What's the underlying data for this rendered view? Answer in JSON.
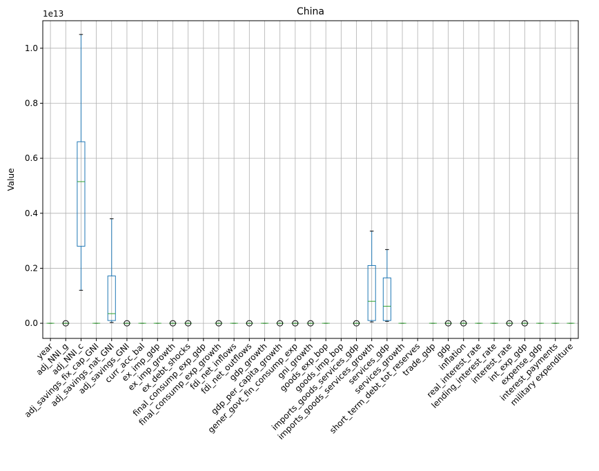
{
  "chart_data": {
    "type": "box",
    "title": "China",
    "y_label": "Value",
    "y_offset_label": "1e13",
    "categories": [
      "year",
      "adj_NNI_g",
      "adj_NNI_c",
      "adj_savings_fix_cap_GNI",
      "adj_savings_nat_GNI",
      "adj_savings_GNI",
      "curr_acc_bal",
      "ex_imp_gdp",
      "ex_imp_growth",
      "ex_debt_shocks",
      "final_consump_exp_gdp",
      "final_consump_exp_growth",
      "fdi_net_inflows",
      "fdi_net_outflows",
      "gdp_growth",
      "gdp_per_capita_growth",
      "gener_govt_fin_consump_exp",
      "gni_growth",
      "goods_exp_bop",
      "goods_imp_bop",
      "imports_goods_services_gdp",
      "imports_goods_services_growth",
      "services_gdp",
      "services_growth",
      "short_term_debt_tot_reserves",
      "trade_gdp",
      "gdp",
      "inflation",
      "real_interest_rate",
      "lending_interest_rate",
      "interest_rate",
      "int_exp_gdp",
      "expense_gdp",
      "interest_payments",
      "military expenditure"
    ],
    "boxes": [
      {
        "whislo": 0,
        "q1": 0,
        "med": 0,
        "q3": 0,
        "whishi": 0,
        "fliers": []
      },
      {
        "whislo": 0,
        "q1": 0,
        "med": 0,
        "q3": 0,
        "whishi": 0,
        "fliers": [
          0
        ]
      },
      {
        "whislo": 0.12,
        "q1": 0.28,
        "med": 0.515,
        "q3": 0.66,
        "whishi": 1.05,
        "fliers": []
      },
      {
        "whislo": 0,
        "q1": 0,
        "med": 0,
        "q3": 0,
        "whishi": 0,
        "fliers": []
      },
      {
        "whislo": 0.003,
        "q1": 0.01,
        "med": 0.035,
        "q3": 0.172,
        "whishi": 0.38,
        "fliers": []
      },
      {
        "whislo": 0,
        "q1": 0,
        "med": 0,
        "q3": 0,
        "whishi": 0,
        "fliers": [
          0
        ]
      },
      {
        "whislo": 0,
        "q1": 0,
        "med": 0,
        "q3": 0,
        "whishi": 0,
        "fliers": []
      },
      {
        "whislo": 0,
        "q1": 0,
        "med": 0,
        "q3": 0,
        "whishi": 0,
        "fliers": []
      },
      {
        "whislo": 0,
        "q1": 0,
        "med": 0,
        "q3": 0,
        "whishi": 0,
        "fliers": [
          0
        ]
      },
      {
        "whislo": 0,
        "q1": 0,
        "med": 0,
        "q3": 0,
        "whishi": 0,
        "fliers": [
          0
        ]
      },
      null,
      {
        "whislo": 0,
        "q1": 0,
        "med": 0,
        "q3": 0,
        "whishi": 0,
        "fliers": [
          0
        ]
      },
      {
        "whislo": 0,
        "q1": 0,
        "med": 0,
        "q3": 0,
        "whishi": 0,
        "fliers": []
      },
      {
        "whislo": 0,
        "q1": 0,
        "med": 0,
        "q3": 0,
        "whishi": 0,
        "fliers": [
          0
        ]
      },
      {
        "whislo": 0,
        "q1": 0,
        "med": 0,
        "q3": 0,
        "whishi": 0,
        "fliers": []
      },
      {
        "whislo": 0,
        "q1": 0,
        "med": 0,
        "q3": 0,
        "whishi": 0,
        "fliers": [
          0
        ]
      },
      {
        "whislo": 0,
        "q1": 0,
        "med": 0,
        "q3": 0,
        "whishi": 0,
        "fliers": [
          0
        ]
      },
      {
        "whislo": 0,
        "q1": 0,
        "med": 0,
        "q3": 0,
        "whishi": 0,
        "fliers": [
          0
        ]
      },
      {
        "whislo": 0,
        "q1": 0,
        "med": 0,
        "q3": 0,
        "whishi": 0,
        "fliers": []
      },
      null,
      {
        "whislo": 0,
        "q1": 0,
        "med": 0,
        "q3": 0,
        "whishi": 0,
        "fliers": [
          0
        ]
      },
      {
        "whislo": 0.005,
        "q1": 0.01,
        "med": 0.08,
        "q3": 0.21,
        "whishi": 0.335,
        "fliers": []
      },
      {
        "whislo": 0.007,
        "q1": 0.01,
        "med": 0.062,
        "q3": 0.165,
        "whishi": 0.268,
        "fliers": []
      },
      {
        "whislo": 0,
        "q1": 0,
        "med": 0,
        "q3": 0,
        "whishi": 0,
        "fliers": []
      },
      null,
      {
        "whislo": 0,
        "q1": 0,
        "med": 0,
        "q3": 0,
        "whishi": 0,
        "fliers": []
      },
      {
        "whislo": 0,
        "q1": 0,
        "med": 0,
        "q3": 0,
        "whishi": 0,
        "fliers": [
          0
        ]
      },
      {
        "whislo": 0,
        "q1": 0,
        "med": 0,
        "q3": 0,
        "whishi": 0,
        "fliers": [
          0
        ]
      },
      {
        "whislo": 0,
        "q1": 0,
        "med": 0,
        "q3": 0,
        "whishi": 0,
        "fliers": []
      },
      {
        "whislo": 0,
        "q1": 0,
        "med": 0,
        "q3": 0,
        "whishi": 0,
        "fliers": []
      },
      {
        "whislo": 0,
        "q1": 0,
        "med": 0,
        "q3": 0,
        "whishi": 0,
        "fliers": [
          0
        ]
      },
      {
        "whislo": 0,
        "q1": 0,
        "med": 0,
        "q3": 0,
        "whishi": 0,
        "fliers": [
          0
        ]
      },
      {
        "whislo": 0,
        "q1": 0,
        "med": 0,
        "q3": 0,
        "whishi": 0,
        "fliers": []
      },
      {
        "whislo": 0,
        "q1": 0,
        "med": 0,
        "q3": 0,
        "whishi": 0,
        "fliers": []
      },
      {
        "whislo": 0,
        "q1": 0,
        "med": 0,
        "q3": 0,
        "whishi": 0,
        "fliers": []
      }
    ],
    "box_color": "#1f77b4",
    "median_color": "#2ca02c",
    "ylim": [
      -0.055,
      1.1
    ],
    "yticks": [
      {
        "value": 0,
        "label": "0.0"
      },
      {
        "value": 0.2,
        "label": "0.2"
      },
      {
        "value": 0.4,
        "label": "0.4"
      },
      {
        "value": 0.6,
        "label": "0.6"
      },
      {
        "value": 0.8,
        "label": "0.8"
      },
      {
        "value": 1,
        "label": "1.0"
      }
    ],
    "grid": true
  }
}
